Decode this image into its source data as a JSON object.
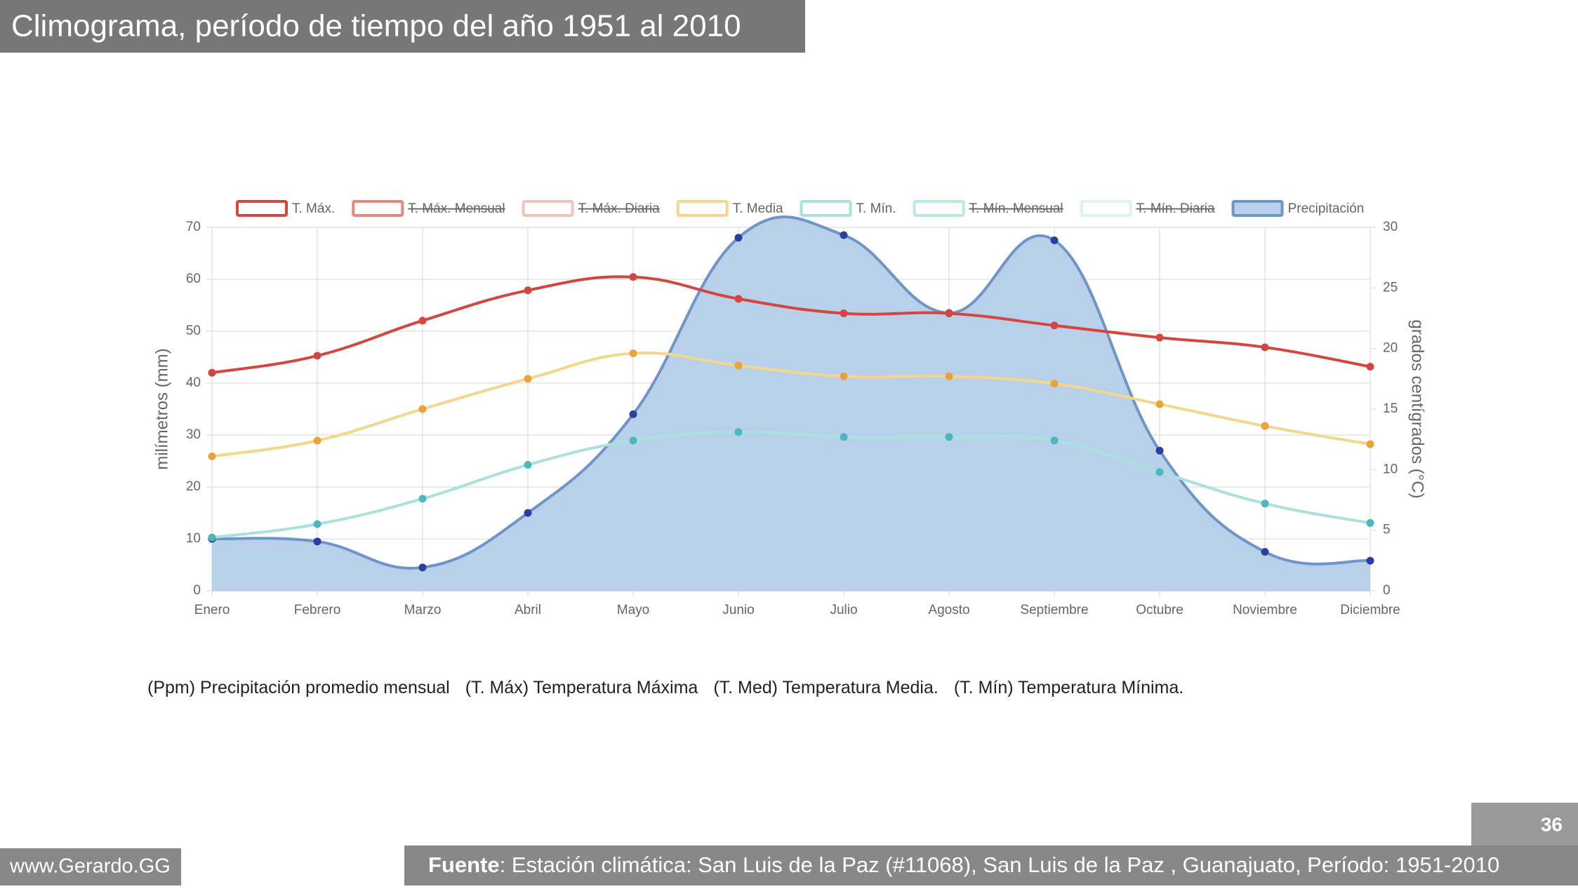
{
  "slide": {
    "title": "Climograma, período de tiempo del año 1951 al 2010",
    "footnote": [
      "(Ppm) Precipitación promedio mensual",
      "(T. Máx) Temperatura Máxima",
      "(T. Med) Temperatura Media.",
      "(T. Mín) Temperatura Mínima."
    ],
    "source_label": "Fuente",
    "source_text": ": Estación climática: San Luis de la Paz (#11068), San Luis de la Paz , Guanajuato, Período: 1951-2010",
    "page_number": "36",
    "watermark": "www.Gerardo.GG"
  },
  "chart_data": {
    "type": "line",
    "categories": [
      "Enero",
      "Febrero",
      "Marzo",
      "Abril",
      "Mayo",
      "Junio",
      "Julio",
      "Agosto",
      "Septiembre",
      "Octubre",
      "Noviembre",
      "Diciembre"
    ],
    "y_label": "milímetros (mm)",
    "y2_label": "grados centígrados (°C)",
    "ylim": [
      0,
      70
    ],
    "yticks": [
      0,
      10,
      20,
      30,
      40,
      50,
      60,
      70
    ],
    "y2lim": [
      0,
      30
    ],
    "y2ticks": [
      0,
      5,
      10,
      15,
      20,
      25,
      30
    ],
    "grid": true,
    "legend": "top",
    "series": [
      {
        "name": "T. Máx.",
        "color": "#d2473f",
        "axis": "y2",
        "values": [
          18.0,
          19.4,
          22.3,
          24.8,
          25.9,
          24.1,
          22.9,
          22.9,
          21.9,
          20.9,
          20.1,
          18.5
        ]
      },
      {
        "name": "T. Máx. Mensual",
        "color": "#e3897f",
        "axis": "y2",
        "hidden": true
      },
      {
        "name": "T. Máx. Diaria",
        "color": "#f0c3bf",
        "axis": "y2",
        "hidden": true
      },
      {
        "name": "T. Media",
        "color": "#f4d68c",
        "axis": "y2",
        "point_color": "#e8a43a",
        "values": [
          11.1,
          12.4,
          15.0,
          17.5,
          19.6,
          18.6,
          17.7,
          17.7,
          17.1,
          15.4,
          13.6,
          12.1
        ]
      },
      {
        "name": "T. Mín.",
        "color": "#a9e2dc",
        "axis": "y2",
        "point_color": "#4db7c0",
        "values": [
          4.4,
          5.5,
          7.6,
          10.4,
          12.4,
          13.1,
          12.7,
          12.7,
          12.4,
          9.8,
          7.2,
          5.6
        ]
      },
      {
        "name": "T. Mín. Mensual",
        "color": "#b7e8e3",
        "axis": "y2",
        "hidden": true
      },
      {
        "name": "T. Mín. Diaria",
        "color": "#dcf4f1",
        "axis": "y2",
        "hidden": true
      },
      {
        "name": "Precipitación",
        "color": "#6f95c8",
        "fill": "#b9d0ea",
        "point_color": "#2b3fa0",
        "axis": "y",
        "area": true,
        "values": [
          10,
          9.5,
          4.5,
          15,
          34,
          68,
          68.5,
          53.5,
          67.5,
          27,
          7.5,
          5.8
        ]
      }
    ]
  }
}
